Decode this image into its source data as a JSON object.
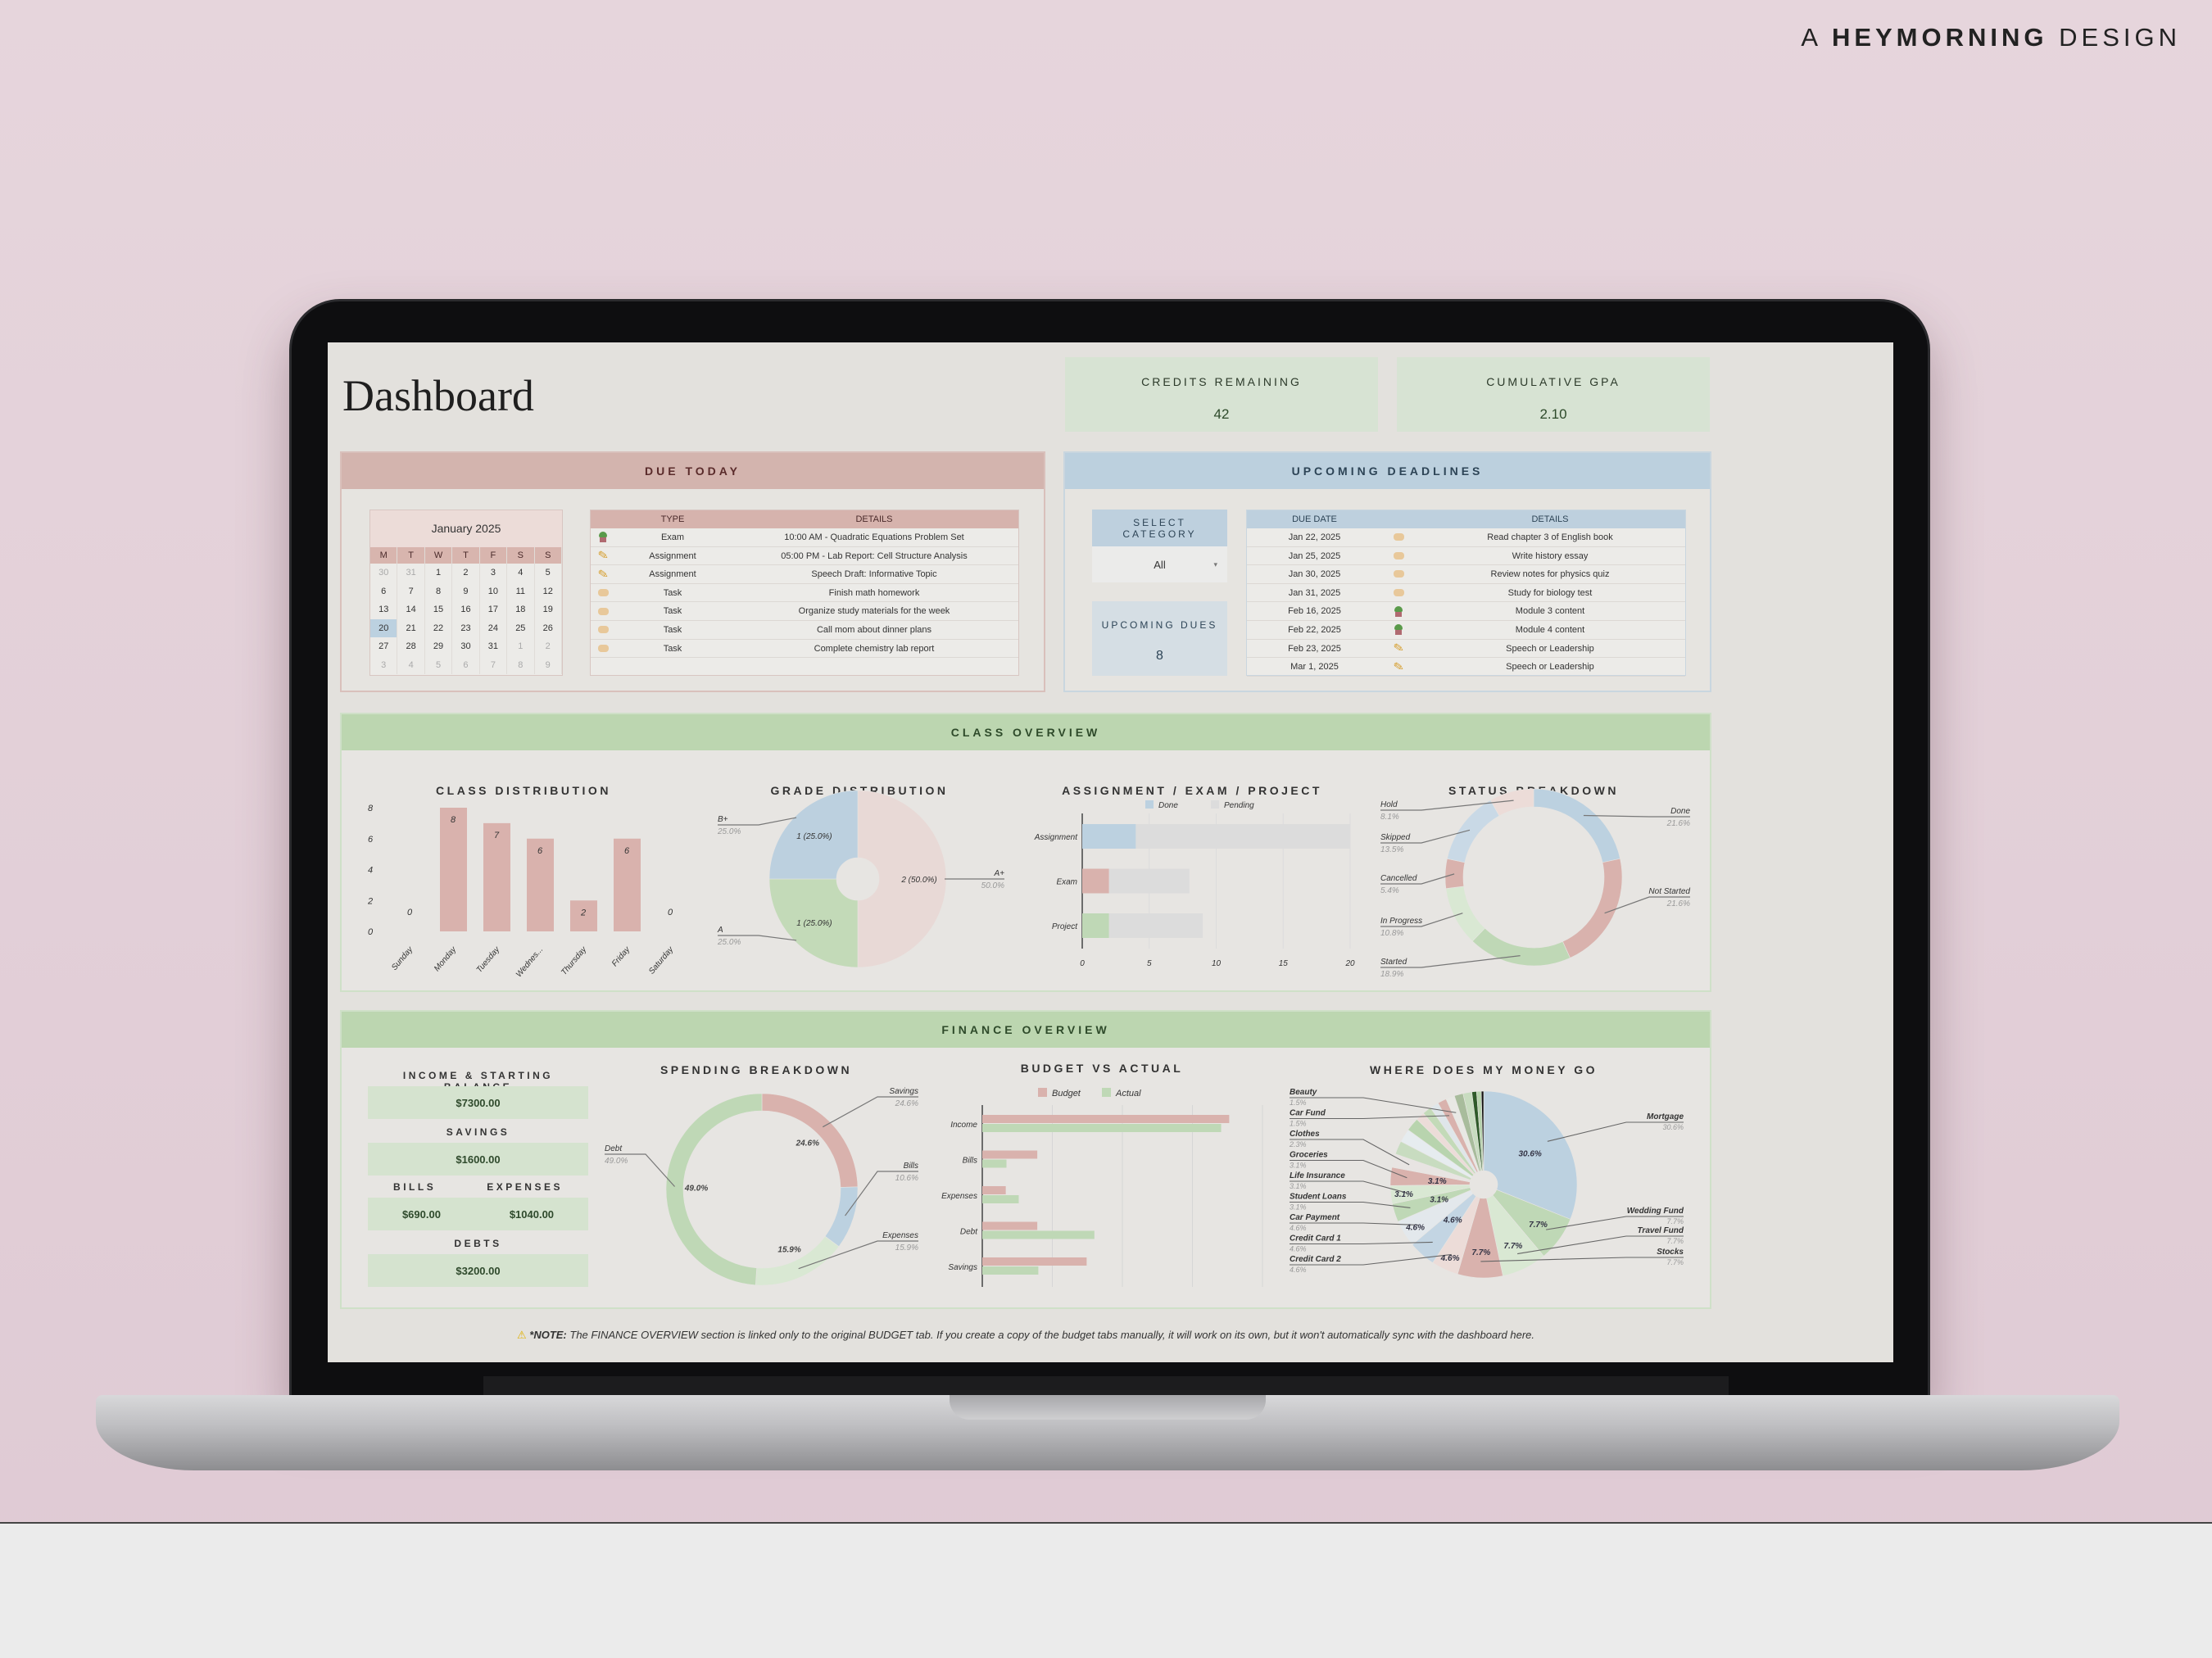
{
  "brand": {
    "prefix": "A",
    "name": "HEYMORNING",
    "suffix": "DESIGN"
  },
  "header": {
    "title": "Dashboard",
    "credits": {
      "label": "CREDITS REMAINING",
      "value": "42"
    },
    "gpa": {
      "label": "CUMULATIVE GPA",
      "value": "2.10"
    }
  },
  "due_today": {
    "title": "DUE TODAY",
    "calendar": {
      "month": "January 2025",
      "weekdays": [
        "M",
        "T",
        "W",
        "T",
        "F",
        "S",
        "S"
      ],
      "selected": "20",
      "weeks": [
        [
          {
            "d": "30",
            "out": true
          },
          {
            "d": "31",
            "out": true
          },
          {
            "d": "1"
          },
          {
            "d": "2"
          },
          {
            "d": "3"
          },
          {
            "d": "4"
          },
          {
            "d": "5"
          }
        ],
        [
          {
            "d": "6"
          },
          {
            "d": "7"
          },
          {
            "d": "8"
          },
          {
            "d": "9"
          },
          {
            "d": "10"
          },
          {
            "d": "11"
          },
          {
            "d": "12"
          }
        ],
        [
          {
            "d": "13"
          },
          {
            "d": "14"
          },
          {
            "d": "15"
          },
          {
            "d": "16"
          },
          {
            "d": "17"
          },
          {
            "d": "18"
          },
          {
            "d": "19"
          }
        ],
        [
          {
            "d": "20"
          },
          {
            "d": "21"
          },
          {
            "d": "22"
          },
          {
            "d": "23"
          },
          {
            "d": "24"
          },
          {
            "d": "25"
          },
          {
            "d": "26"
          }
        ],
        [
          {
            "d": "27"
          },
          {
            "d": "28"
          },
          {
            "d": "29"
          },
          {
            "d": "30"
          },
          {
            "d": "31"
          },
          {
            "d": "1",
            "out": true
          },
          {
            "d": "2",
            "out": true
          }
        ],
        [
          {
            "d": "3",
            "out": true
          },
          {
            "d": "4",
            "out": true
          },
          {
            "d": "5",
            "out": true
          },
          {
            "d": "6",
            "out": true
          },
          {
            "d": "7",
            "out": true
          },
          {
            "d": "8",
            "out": true
          },
          {
            "d": "9",
            "out": true
          }
        ]
      ]
    },
    "table": {
      "headers": [
        "TYPE",
        "DETAILS"
      ],
      "rows": [
        {
          "icon": "plant-pot",
          "type": "Exam",
          "details": "10:00 AM - Quadratic Equations Problem Set"
        },
        {
          "icon": "pencil",
          "type": "Assignment",
          "details": "05:00 PM - Lab Report: Cell Structure Analysis"
        },
        {
          "icon": "pencil",
          "type": "Assignment",
          "details": "Speech Draft: Informative Topic"
        },
        {
          "icon": "sticky-note",
          "type": "Task",
          "details": "Finish math homework"
        },
        {
          "icon": "sticky-note",
          "type": "Task",
          "details": "Organize study materials for the week"
        },
        {
          "icon": "sticky-note",
          "type": "Task",
          "details": "Call mom about dinner plans"
        },
        {
          "icon": "sticky-note",
          "type": "Task",
          "details": "Complete chemistry lab report"
        }
      ]
    }
  },
  "upcoming": {
    "title": "UPCOMING DEADLINES",
    "select_category": {
      "label": "SELECT CATEGORY",
      "value": "All"
    },
    "upcoming_dues": {
      "label": "UPCOMING DUES",
      "value": "8"
    },
    "table": {
      "headers": [
        "DUE DATE",
        "DETAILS"
      ],
      "rows": [
        {
          "date": "Jan 22, 2025",
          "icon": "sticky-note",
          "details": "Read chapter 3 of English book"
        },
        {
          "date": "Jan 25, 2025",
          "icon": "sticky-note",
          "details": "Write history essay"
        },
        {
          "date": "Jan 30, 2025",
          "icon": "sticky-note",
          "details": "Review notes for physics quiz"
        },
        {
          "date": "Jan 31, 2025",
          "icon": "sticky-note",
          "details": "Study for biology test"
        },
        {
          "date": "Feb 16, 2025",
          "icon": "plant-pot",
          "details": "Module 3 content"
        },
        {
          "date": "Feb 22, 2025",
          "icon": "plant-pot",
          "details": "Module 4 content"
        },
        {
          "date": "Feb 23, 2025",
          "icon": "pencil",
          "details": "Speech or Leadership"
        },
        {
          "date": "Mar 1, 2025",
          "icon": "pencil",
          "details": "Speech or Leadership"
        }
      ]
    }
  },
  "class_overview": {
    "title": "CLASS OVERVIEW"
  },
  "finance_overview": {
    "title": "FINANCE OVERVIEW",
    "income": {
      "label": "INCOME & STARTING BALANCE",
      "value": "$7300.00"
    },
    "savings": {
      "label": "SAVINGS",
      "value": "$1600.00"
    },
    "bills": {
      "label": "BILLS",
      "value": "$690.00"
    },
    "expenses": {
      "label": "EXPENSES",
      "value": "$1040.00"
    },
    "debts": {
      "label": "DEBTS",
      "value": "$3200.00"
    }
  },
  "note": {
    "icon": "warning",
    "bold": "*NOTE:",
    "text": "The FINANCE OVERVIEW section is linked only to the original BUDGET tab. If you create a copy of the budget tabs manually, it will work on its own, but it won't automatically sync with the dashboard here."
  },
  "colors": {
    "pink": "#d9b2ad",
    "blue": "#bcd1e0",
    "green": "#bfd8b6",
    "light_green": "#d9e8d3",
    "light_pink": "#ecdcd8",
    "grey": "#dcdcdc"
  },
  "chart_data": [
    {
      "type": "bar",
      "title": "CLASS DISTRIBUTION",
      "categories": [
        "Sunday",
        "Monday",
        "Tuesday",
        "Wednes...",
        "Thursday",
        "Friday",
        "Saturday"
      ],
      "values": [
        0,
        8,
        7,
        6,
        2,
        6,
        0
      ],
      "yticks": [
        0,
        2,
        4,
        6,
        8
      ],
      "ylim": [
        0,
        8
      ],
      "color": "#d9b2ad",
      "grid": false
    },
    {
      "type": "pie",
      "title": "GRADE DISTRIBUTION",
      "slices": [
        {
          "label": "A+",
          "value": 2,
          "percent": "50.0%",
          "inner": "2 (50.0%)",
          "color": "#e8d9d6"
        },
        {
          "label": "A",
          "value": 1,
          "percent": "25.0%",
          "inner": "1 (25.0%)",
          "color": "#c3dab8"
        },
        {
          "label": "B+",
          "value": 1,
          "percent": "25.0%",
          "inner": "1 (25.0%)",
          "color": "#bcd0df"
        }
      ]
    },
    {
      "type": "bar",
      "orientation": "horizontal",
      "stacked": true,
      "title": "ASSIGNMENT / EXAM / PROJECT",
      "categories": [
        "Assignment",
        "Exam",
        "Project"
      ],
      "series": [
        {
          "name": "Done",
          "values": [
            4,
            2,
            2
          ],
          "colors": [
            "#bcd1e0",
            "#d9b2ad",
            "#bfd8b6"
          ]
        },
        {
          "name": "Pending",
          "values": [
            16,
            6,
            7
          ],
          "colors": [
            "#dcdcdc",
            "#dcdcdc",
            "#dcdcdc"
          ]
        }
      ],
      "xticks": [
        0,
        5,
        10,
        15,
        20
      ],
      "xlim": [
        0,
        20
      ],
      "legend": "top",
      "grid": true
    },
    {
      "type": "pie",
      "donut": true,
      "title": "STATUS BREAKDOWN",
      "slices": [
        {
          "label": "Done",
          "value": 21.6,
          "percent": "21.6%",
          "color": "#bcd1e0"
        },
        {
          "label": "Not Started",
          "value": 21.6,
          "percent": "21.6%",
          "color": "#d9b2ad"
        },
        {
          "label": "Started",
          "value": 18.9,
          "percent": "18.9%",
          "color": "#bfd8b6"
        },
        {
          "label": "In Progress",
          "value": 10.8,
          "percent": "10.8%",
          "color": "#d9e8d3"
        },
        {
          "label": "Cancelled",
          "value": 5.4,
          "percent": "5.4%",
          "color": "#d9b2ad"
        },
        {
          "label": "Skipped",
          "value": 13.5,
          "percent": "13.5%",
          "color": "#c9d9e6"
        },
        {
          "label": "Hold",
          "value": 8.1,
          "percent": "8.1%",
          "color": "#ecdcd8"
        }
      ]
    },
    {
      "type": "pie",
      "donut": true,
      "title": "SPENDING BREAKDOWN",
      "slices": [
        {
          "label": "Savings",
          "value": 24.6,
          "percent": "24.6%",
          "color": "#d9b2ad"
        },
        {
          "label": "Bills",
          "value": 10.6,
          "percent": "10.6%",
          "color": "#bcd1e0"
        },
        {
          "label": "Expenses",
          "value": 15.9,
          "percent": "15.9%",
          "color": "#d9e8d3"
        },
        {
          "label": "Debt",
          "value": 49.0,
          "percent": "49.0%",
          "color": "#bfd8b6"
        }
      ]
    },
    {
      "type": "bar",
      "orientation": "horizontal",
      "title": "BUDGET VS ACTUAL",
      "categories": [
        "Income",
        "Bills",
        "Expenses",
        "Debt",
        "Savings"
      ],
      "series": [
        {
          "name": "Budget",
          "values": [
            7050,
            1570,
            670,
            1570,
            2980
          ],
          "color": "#d9b2ad"
        },
        {
          "name": "Actual",
          "values": [
            6820,
            690,
            1040,
            3200,
            1600
          ],
          "color": "#bfd8b6"
        }
      ],
      "xlim": [
        0,
        8000
      ],
      "grid": true,
      "legend": "top"
    },
    {
      "type": "pie",
      "title": "WHERE DOES MY MONEY GO",
      "slices": [
        {
          "label": "Mortgage",
          "value": 30.6,
          "percent": "30.6%",
          "color": "#bcd1e0"
        },
        {
          "label": "Wedding Fund",
          "value": 7.7,
          "percent": "7.7%",
          "color": "#bfd8b6"
        },
        {
          "label": "Travel Fund",
          "value": 7.7,
          "percent": "7.7%",
          "color": "#d9e8d3"
        },
        {
          "label": "Stocks",
          "value": 7.7,
          "percent": "7.7%",
          "color": "#d9b2ad"
        },
        {
          "label": "Credit Card 2",
          "value": 4.6,
          "percent": "4.6%",
          "color": "#ecdcd8"
        },
        {
          "label": "Credit Card 1",
          "value": 4.6,
          "percent": "4.6%",
          "color": "#c3d5e3"
        },
        {
          "label": "Car Payment",
          "value": 4.6,
          "percent": "4.6%",
          "color": "#e3e8ec"
        },
        {
          "label": "Student Loans",
          "value": 3.1,
          "percent": "3.1%",
          "color": "#bfd8b6"
        },
        {
          "label": "Life Insurance",
          "value": 3.1,
          "percent": "3.1%",
          "color": "#d9e8d3"
        },
        {
          "label": "Groceries",
          "value": 3.1,
          "percent": "3.1%",
          "color": "#d9b2ad"
        },
        {
          "label": "Clothes",
          "value": 2.3,
          "percent": "2.3%",
          "color": "#e8e4e2"
        },
        {
          "label": "",
          "value": 2.3,
          "color": "#c8dcc0"
        },
        {
          "label": "",
          "value": 2.3,
          "color": "#e6ecef"
        },
        {
          "label": "",
          "value": 2.3,
          "color": "#b8d4ae"
        },
        {
          "label": "",
          "value": 1.5,
          "color": "#ecdcd8"
        },
        {
          "label": "",
          "value": 1.5,
          "color": "#c3dab8"
        },
        {
          "label": "",
          "value": 1.5,
          "color": "#dfe6ea"
        },
        {
          "label": "Car Fund",
          "value": 1.5,
          "percent": "1.5%",
          "color": "#d9b2ad"
        },
        {
          "label": "Beauty",
          "value": 1.5,
          "percent": "1.5%",
          "color": "#e8e8e4"
        },
        {
          "label": "",
          "value": 1.5,
          "color": "#a8bc9c"
        },
        {
          "label": "",
          "value": 1.5,
          "color": "#c8dcc0"
        },
        {
          "label": "",
          "value": 0.8,
          "color": "#2f5a2a"
        },
        {
          "label": "",
          "value": 0.8,
          "color": "#b8d4ae"
        },
        {
          "label": "",
          "value": 0.4,
          "color": "#111111"
        }
      ]
    }
  ]
}
